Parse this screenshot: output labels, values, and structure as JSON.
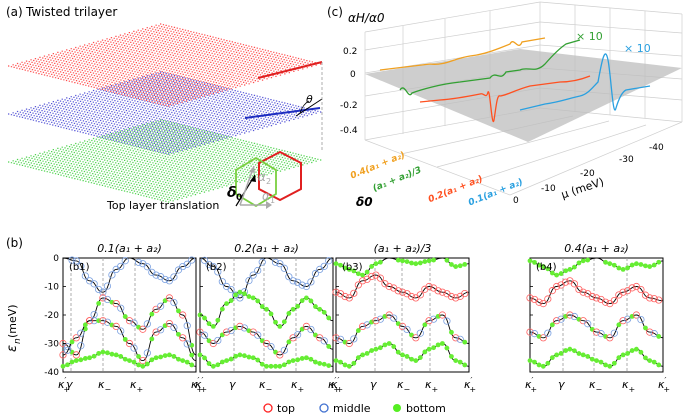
{
  "panel_a": {
    "label": "(a)",
    "title": "Twisted trilayer",
    "theta_symbol": "θ",
    "translation_label": "Top layer translation",
    "delta0_symbol": "δ",
    "delta0_sub": "0",
    "a1_symbol": "α",
    "a1_sub": "1",
    "a2_symbol": "α",
    "a2_sub": "2",
    "colors": {
      "top": "#ff3030",
      "middle": "#3a3ad0",
      "bottom": "#33cc33"
    }
  },
  "panel_b": {
    "label": "(b)",
    "ylabel_main": "ε",
    "ylabel_sub": "n",
    "ylabel_unit": " (meV)",
    "yticks": [
      "0",
      "-10",
      "-20",
      "-30",
      "-40"
    ],
    "xticks": [
      {
        "main": "κ",
        "sup": "′",
        "sub": "+"
      },
      {
        "main": "γ",
        "sup": "",
        "sub": ""
      },
      {
        "main": "κ",
        "sup": "",
        "sub": "−"
      },
      {
        "main": "κ",
        "sup": "",
        "sub": "+"
      },
      {
        "main": "κ",
        "sup": "′",
        "sub": "+"
      }
    ],
    "subpanels": [
      {
        "tag": "(b1)",
        "title": "0.1(a₁ + a₂)"
      },
      {
        "tag": "(b2)",
        "title": "0.2(a₁ + a₂)"
      },
      {
        "tag": "(b3)",
        "title": "(a₁ + a₂)/3"
      },
      {
        "tag": "(b4)",
        "title": "0.4(a₁ + a₂)"
      }
    ],
    "legend": [
      {
        "label": "top",
        "color": "#ff2020"
      },
      {
        "label": "middle",
        "color": "#4070d0"
      },
      {
        "label": "bottom",
        "color": "#55ee22"
      }
    ]
  },
  "panel_c": {
    "label": "(c)",
    "ylabel": "αH/α0",
    "zticks": [
      "0.2",
      "0",
      "-0.2",
      "-0.4"
    ],
    "mu_ticks": [
      "0",
      "-10",
      "-20",
      "-30",
      "-40"
    ],
    "mu_label": "μ (meV)",
    "delta_label": "δ0",
    "series": [
      {
        "label": "0.4(a₁ + a₂)",
        "color": "#f0a020"
      },
      {
        "label": "(a₁ + a₂)/3",
        "color": "#33a033"
      },
      {
        "label": "0.2(a₁ + a₂)",
        "color": "#ff5020"
      },
      {
        "label": "0.1(a₁ + a₂)",
        "color": "#2aa0e0"
      }
    ],
    "scale_green": "× 10",
    "scale_blue": "× 10"
  }
}
